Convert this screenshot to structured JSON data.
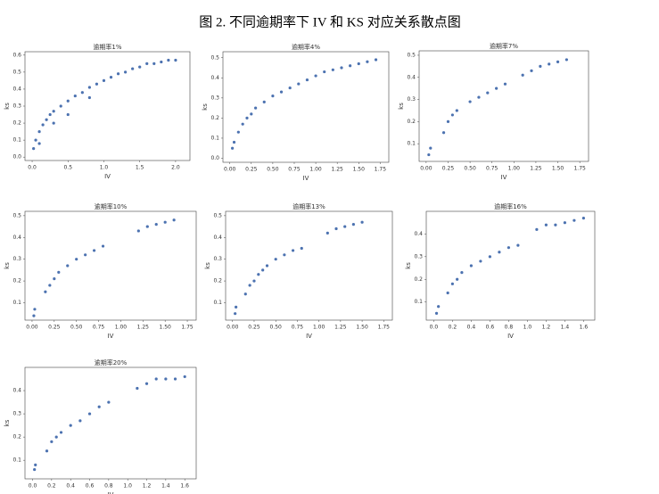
{
  "title": "图 2. 不同逾期率下 IV 和 KS 对应关系散点图",
  "chart_data": [
    {
      "type": "scatter",
      "title": "逾期率1%",
      "xlabel": "IV",
      "ylabel": "ks",
      "color": "#4c72b0",
      "x": [
        0.02,
        0.05,
        0.1,
        0.15,
        0.2,
        0.25,
        0.3,
        0.4,
        0.5,
        0.6,
        0.7,
        0.8,
        0.9,
        1.0,
        1.1,
        1.2,
        1.3,
        1.4,
        1.5,
        1.6,
        1.7,
        1.8,
        1.9,
        2.0,
        0.1,
        0.3,
        0.5,
        0.8
      ],
      "values": [
        0.05,
        0.1,
        0.15,
        0.19,
        0.22,
        0.25,
        0.27,
        0.3,
        0.33,
        0.36,
        0.38,
        0.41,
        0.43,
        0.45,
        0.47,
        0.49,
        0.5,
        0.52,
        0.53,
        0.55,
        0.55,
        0.56,
        0.57,
        0.57,
        0.08,
        0.2,
        0.25,
        0.35
      ],
      "xlim": [
        -0.1,
        2.2
      ],
      "ylim": [
        -0.02,
        0.62
      ],
      "xticks": [
        {
          "value": 0,
          "label": "0.0"
        },
        0.5,
        {
          "value": 1,
          "label": "1.0"
        },
        1.5,
        {
          "value": 2,
          "label": "2.0"
        }
      ],
      "yticks": [
        {
          "value": 0,
          "label": "0.0"
        },
        0.1,
        0.2,
        0.3,
        0.4,
        0.5,
        0.6
      ]
    },
    {
      "type": "scatter",
      "title": "逾期率4%",
      "xlabel": "IV",
      "ylabel": "ks",
      "color": "#4c72b0",
      "x": [
        0.03,
        0.05,
        0.1,
        0.15,
        0.2,
        0.25,
        0.3,
        0.4,
        0.5,
        0.6,
        0.7,
        0.8,
        0.9,
        1.0,
        1.1,
        1.2,
        1.3,
        1.4,
        1.5,
        1.6,
        1.7
      ],
      "values": [
        0.05,
        0.08,
        0.13,
        0.17,
        0.2,
        0.22,
        0.25,
        0.28,
        0.31,
        0.33,
        0.35,
        0.37,
        0.39,
        0.41,
        0.43,
        0.44,
        0.45,
        0.46,
        0.47,
        0.48,
        0.49
      ],
      "xlim": [
        -0.08,
        1.85
      ],
      "ylim": [
        -0.02,
        0.53
      ],
      "xticks": [
        {
          "value": 0,
          "label": "0.00"
        },
        0.25,
        {
          "value": 0.5,
          "label": "0.50"
        },
        0.75,
        {
          "value": 1,
          "label": "1.00"
        },
        1.25,
        {
          "value": 1.5,
          "label": "1.50"
        },
        1.75
      ],
      "yticks": [
        {
          "value": 0,
          "label": "0.0"
        },
        0.1,
        0.2,
        0.3,
        0.4,
        0.5
      ]
    },
    {
      "type": "scatter",
      "title": "逾期率7%",
      "xlabel": "IV",
      "ylabel": "ks",
      "color": "#4c72b0",
      "x": [
        0.03,
        0.05,
        0.2,
        0.25,
        0.3,
        0.35,
        0.5,
        0.6,
        0.7,
        0.8,
        0.9,
        1.1,
        1.2,
        1.3,
        1.4,
        1.5,
        1.6
      ],
      "values": [
        0.05,
        0.08,
        0.15,
        0.2,
        0.23,
        0.25,
        0.29,
        0.31,
        0.33,
        0.35,
        0.37,
        0.41,
        0.43,
        0.45,
        0.46,
        0.47,
        0.48
      ],
      "xlim": [
        -0.08,
        1.85
      ],
      "ylim": [
        0.02,
        0.52
      ],
      "xticks": [
        {
          "value": 0,
          "label": "0.00"
        },
        0.25,
        {
          "value": 0.5,
          "label": "0.50"
        },
        0.75,
        {
          "value": 1,
          "label": "1.00"
        },
        1.25,
        {
          "value": 1.5,
          "label": "1.50"
        },
        1.75
      ],
      "yticks": [
        0.1,
        0.2,
        0.3,
        0.4,
        0.5
      ]
    },
    {
      "type": "scatter",
      "title": "逾期率10%",
      "xlabel": "IV",
      "ylabel": "ks",
      "color": "#4c72b0",
      "x": [
        0.02,
        0.03,
        0.15,
        0.2,
        0.25,
        0.3,
        0.4,
        0.5,
        0.6,
        0.7,
        0.8,
        1.2,
        1.3,
        1.4,
        1.5,
        1.6
      ],
      "values": [
        0.04,
        0.07,
        0.15,
        0.18,
        0.21,
        0.24,
        0.27,
        0.3,
        0.32,
        0.34,
        0.36,
        0.43,
        0.45,
        0.46,
        0.47,
        0.48
      ],
      "xlim": [
        -0.08,
        1.85
      ],
      "ylim": [
        0.02,
        0.52
      ],
      "xticks": [
        {
          "value": 0,
          "label": "0.00"
        },
        0.25,
        {
          "value": 0.5,
          "label": "0.50"
        },
        0.75,
        {
          "value": 1,
          "label": "1.00"
        },
        1.25,
        {
          "value": 1.5,
          "label": "1.50"
        },
        1.75
      ],
      "yticks": [
        0.1,
        0.2,
        0.3,
        0.4,
        0.5
      ]
    },
    {
      "type": "scatter",
      "title": "逾期率13%",
      "xlabel": "IV",
      "ylabel": "ks",
      "color": "#4c72b0",
      "x": [
        0.03,
        0.04,
        0.15,
        0.2,
        0.25,
        0.3,
        0.35,
        0.4,
        0.5,
        0.6,
        0.7,
        0.8,
        1.1,
        1.2,
        1.3,
        1.4,
        1.5
      ],
      "values": [
        0.05,
        0.08,
        0.14,
        0.18,
        0.2,
        0.23,
        0.25,
        0.27,
        0.3,
        0.32,
        0.34,
        0.35,
        0.42,
        0.44,
        0.45,
        0.46,
        0.47
      ],
      "xlim": [
        -0.08,
        1.85
      ],
      "ylim": [
        0.02,
        0.52
      ],
      "xticks": [
        {
          "value": 0,
          "label": "0.00"
        },
        0.25,
        {
          "value": 0.5,
          "label": "0.50"
        },
        0.75,
        {
          "value": 1,
          "label": "1.00"
        },
        1.25,
        {
          "value": 1.5,
          "label": "1.50"
        },
        1.75
      ],
      "yticks": [
        0.1,
        0.2,
        0.3,
        0.4,
        0.5
      ]
    },
    {
      "type": "scatter",
      "title": "逾期率16%",
      "xlabel": "IV",
      "ylabel": "ks",
      "color": "#4c72b0",
      "x": [
        0.03,
        0.05,
        0.15,
        0.2,
        0.25,
        0.3,
        0.4,
        0.5,
        0.6,
        0.7,
        0.8,
        0.9,
        1.1,
        1.2,
        1.3,
        1.4,
        1.5,
        1.6
      ],
      "values": [
        0.05,
        0.08,
        0.14,
        0.18,
        0.2,
        0.23,
        0.26,
        0.28,
        0.3,
        0.32,
        0.34,
        0.35,
        0.42,
        0.44,
        0.44,
        0.45,
        0.46,
        0.47
      ],
      "xlim": [
        -0.08,
        1.72
      ],
      "ylim": [
        0.02,
        0.5
      ],
      "xticks": [
        {
          "value": 0,
          "label": "0.0"
        },
        0.2,
        0.4,
        0.6,
        0.8,
        {
          "value": 1,
          "label": "1.0"
        },
        1.2,
        1.4,
        1.6
      ],
      "yticks": [
        0.1,
        0.2,
        0.3,
        0.4
      ]
    },
    {
      "type": "scatter",
      "title": "逾期率20%",
      "xlabel": "IV",
      "ylabel": "ks",
      "color": "#4c72b0",
      "x": [
        0.02,
        0.03,
        0.15,
        0.2,
        0.25,
        0.3,
        0.4,
        0.5,
        0.6,
        0.7,
        0.8,
        1.1,
        1.2,
        1.3,
        1.4,
        1.5,
        1.6
      ],
      "values": [
        0.06,
        0.08,
        0.14,
        0.18,
        0.2,
        0.22,
        0.25,
        0.27,
        0.3,
        0.33,
        0.35,
        0.41,
        0.43,
        0.45,
        0.45,
        0.45,
        0.46
      ],
      "xlim": [
        -0.08,
        1.72
      ],
      "ylim": [
        0.02,
        0.5
      ],
      "xticks": [
        {
          "value": 0,
          "label": "0.0"
        },
        0.2,
        0.4,
        0.6,
        0.8,
        {
          "value": 1,
          "label": "1.0"
        },
        1.2,
        1.4,
        1.6
      ],
      "yticks": [
        0.1,
        0.2,
        0.3,
        0.4
      ]
    }
  ]
}
